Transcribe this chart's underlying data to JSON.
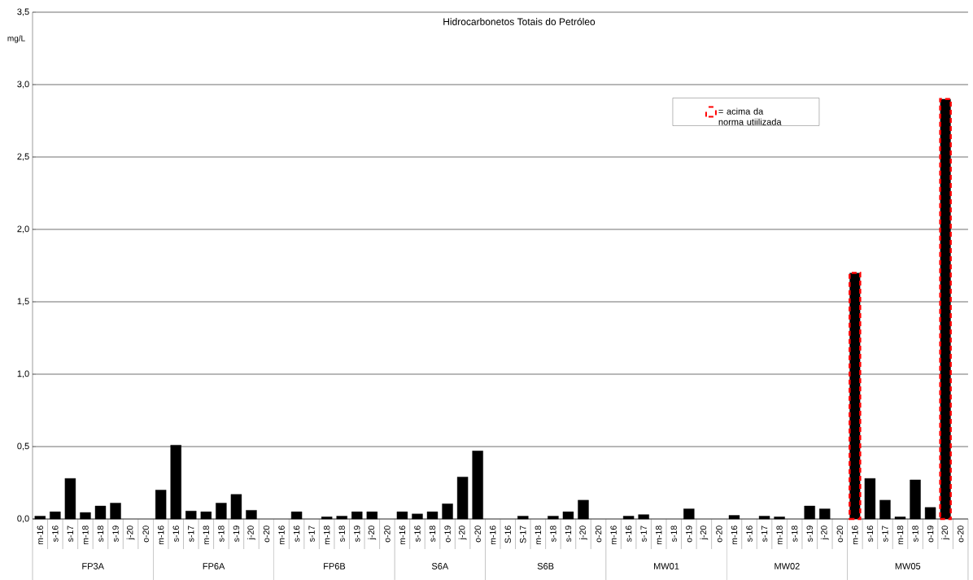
{
  "chart_data": {
    "type": "bar",
    "title": "Hidrocarbonetos Totais do Petróleo",
    "ylabel": "mg/L",
    "categories": [
      "m-16",
      "s-16",
      "s-17",
      "m-18",
      "s-18",
      "s-19",
      "j-20",
      "o-20",
      "m-16",
      "s-16",
      "s-17",
      "m-18",
      "s-18",
      "s-19",
      "j-20",
      "o-20",
      "m-16",
      "s-16",
      "s-17",
      "m-18",
      "s-18",
      "s-19",
      "j-20",
      "o-20",
      "m-16",
      "s-16",
      "s-18",
      "o-19",
      "j-20",
      "o-20",
      "m-16",
      "S-16",
      "S-17",
      "m-18",
      "s-18",
      "s-19",
      "j-20",
      "o-20",
      "m-16",
      "s-16",
      "s-17",
      "m-18",
      "s-18",
      "o-19",
      "j-20",
      "o-20",
      "m-16",
      "s-16",
      "s-17",
      "m-18",
      "s-18",
      "s-19",
      "j-20",
      "o-20",
      "m-16",
      "s-16",
      "s-17",
      "m-18",
      "s-18",
      "o-19",
      "j-20",
      "o-20"
    ],
    "series": [
      {
        "color": "#000000",
        "values": [
          0.02,
          0.05,
          0.28,
          0.045,
          0.09,
          0.11,
          null,
          null,
          0.2,
          0.51,
          0.055,
          0.05,
          0.11,
          0.17,
          0.06,
          null,
          null,
          0.05,
          null,
          0.015,
          0.02,
          0.05,
          0.05,
          null,
          0.05,
          0.035,
          0.05,
          0.105,
          0.29,
          0.47,
          null,
          null,
          0.02,
          null,
          0.02,
          0.05,
          0.13,
          null,
          null,
          0.02,
          0.03,
          null,
          null,
          0.07,
          null,
          null,
          0.025,
          null,
          0.02,
          0.015,
          null,
          0.09,
          0.07,
          null,
          null,
          0.28,
          0.13,
          0.015,
          0.27,
          0.08,
          null,
          null
        ]
      },
      {
        "name": "=  acima da norma utiilizada",
        "color": "#ff0000",
        "line_style": "dashed",
        "values": [
          null,
          null,
          null,
          null,
          null,
          null,
          null,
          null,
          null,
          null,
          null,
          null,
          null,
          null,
          null,
          null,
          null,
          null,
          null,
          null,
          null,
          null,
          null,
          null,
          null,
          null,
          null,
          null,
          null,
          null,
          null,
          null,
          null,
          null,
          null,
          null,
          null,
          null,
          null,
          null,
          null,
          null,
          null,
          null,
          null,
          null,
          null,
          null,
          null,
          null,
          null,
          null,
          null,
          null,
          1.7,
          null,
          null,
          null,
          null,
          null,
          2.9,
          null
        ]
      }
    ],
    "ylim": [
      0,
      3.5
    ],
    "yticks": [
      {
        "value": 0,
        "label": "0,0"
      },
      {
        "value": 0.5,
        "label": "0,5"
      },
      {
        "value": 1,
        "label": "1,0"
      },
      {
        "value": 1.5,
        "label": "1,5"
      },
      {
        "value": 2,
        "label": "2,0"
      },
      {
        "value": 2.5,
        "label": "2,5"
      },
      {
        "value": 3,
        "label": "3,0"
      },
      {
        "value": 3.5,
        "label": "3,5"
      }
    ],
    "grid": "y",
    "legend": "top right",
    "annotations": [
      "FP3A",
      "FP6A",
      "FP6B",
      "S6A",
      "S6B",
      "MW01",
      "MW02",
      "MW05"
    ]
  }
}
